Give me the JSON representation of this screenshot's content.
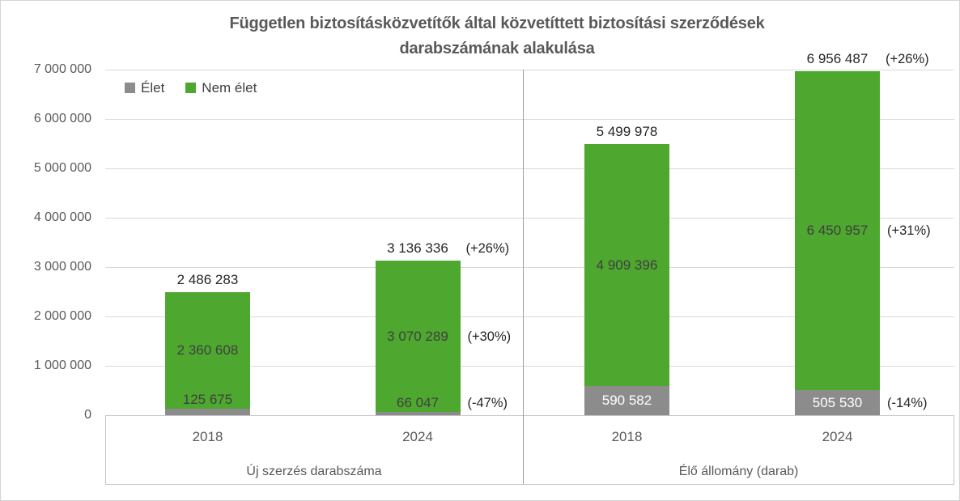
{
  "colors": {
    "elet": "#8C8C8C",
    "nem_elet": "#4EA72E",
    "gridline": "#D9D9D9",
    "axis_box": "#C6C6C6",
    "divider": "#9E9E9E",
    "axis_text": "#595959",
    "label_dark": "#404040",
    "label_white": "#FFFFFF",
    "total_text": "#262626"
  },
  "chart_data": {
    "type": "bar",
    "stacked": true,
    "title": "Független biztosításközvetítők által közvetíttett biztosítási szerződések darabszámának alakulása",
    "title_lines": [
      "Független biztosításközvetítők által közvetíttett biztosítási szerződések",
      "darabszámának alakulása"
    ],
    "xlabel": "",
    "ylabel": "",
    "ylim": [
      0,
      7000000
    ],
    "grid": true,
    "legend_position": "top-left-inside",
    "legend": [
      {
        "name": "Élet",
        "color": "#8C8C8C"
      },
      {
        "name": "Nem élet",
        "color": "#4EA72E"
      }
    ],
    "yticks": [
      {
        "value": 0,
        "label": "0"
      },
      {
        "value": 1000000,
        "label": "1 000 000"
      },
      {
        "value": 2000000,
        "label": "2 000 000"
      },
      {
        "value": 3000000,
        "label": "3 000 000"
      },
      {
        "value": 4000000,
        "label": "4 000 000"
      },
      {
        "value": 5000000,
        "label": "5 000 000"
      },
      {
        "value": 6000000,
        "label": "6 000 000"
      },
      {
        "value": 7000000,
        "label": "7 000 000"
      }
    ],
    "groups": [
      {
        "label": "Új szerzés darabszáma",
        "bars": [
          {
            "category": "2018",
            "segments": {
              "elet": 125675,
              "nem_elet": 2360608
            },
            "total": 2486283,
            "labels": {
              "elet": "125 675",
              "nem_elet": "2 360 608",
              "total": "2 486 283"
            },
            "pct": {
              "elet": "",
              "nem_elet": "",
              "total": ""
            }
          },
          {
            "category": "2024",
            "segments": {
              "elet": 66047,
              "nem_elet": 3070289
            },
            "total": 3136336,
            "labels": {
              "elet": "66 047",
              "nem_elet": "3 070 289",
              "total": "3 136 336"
            },
            "pct": {
              "elet": "(-47%)",
              "nem_elet": "(+30%)",
              "total": "(+26%)"
            }
          }
        ]
      },
      {
        "label": "Élő állomány (darab)",
        "bars": [
          {
            "category": "2018",
            "segments": {
              "elet": 590582,
              "nem_elet": 4909396
            },
            "total": 5499978,
            "labels": {
              "elet": "590 582",
              "nem_elet": "4 909 396",
              "total": "5 499 978"
            },
            "pct": {
              "elet": "",
              "nem_elet": "",
              "total": ""
            }
          },
          {
            "category": "2024",
            "segments": {
              "elet": 505530,
              "nem_elet": 6450957
            },
            "total": 6956487,
            "labels": {
              "elet": "505 530",
              "nem_elet": "6 450 957",
              "total": "6 956 487"
            },
            "pct": {
              "elet": "(-14%)",
              "nem_elet": "(+31%)",
              "total": "(+26%)"
            }
          }
        ]
      }
    ]
  }
}
